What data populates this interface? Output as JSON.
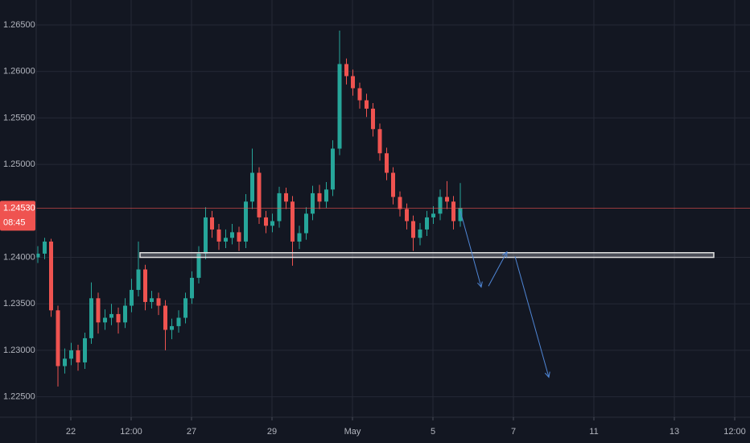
{
  "chart_data": {
    "type": "candlestick",
    "up_color": "#26a69a",
    "down_color": "#ef5350",
    "x": [
      -0.82,
      -0.65,
      -0.49,
      -0.32,
      -0.15,
      0.01,
      0.18,
      0.35,
      0.51,
      0.68,
      0.85,
      1.01,
      1.18,
      1.35,
      1.51,
      1.68,
      1.85,
      2.01,
      2.18,
      2.35,
      2.51,
      2.68,
      2.85,
      3.01,
      3.18,
      3.35,
      3.51,
      3.68,
      3.85,
      4.01,
      4.18,
      4.35,
      4.51,
      4.68,
      4.85,
      5.01,
      5.18,
      5.35,
      5.51,
      5.68,
      5.85,
      6.01,
      6.18,
      6.35,
      6.51,
      6.68,
      6.85,
      7.01,
      7.18,
      7.35,
      7.51,
      7.68,
      7.85,
      8.01,
      8.18,
      8.35,
      8.51,
      8.68,
      8.85,
      9.01,
      9.18,
      9.35,
      9.51,
      9.68
    ],
    "open": [
      1.24,
      1.2404,
      1.2417,
      1.2343,
      1.2283,
      1.2291,
      1.23,
      1.2287,
      1.2313,
      1.2356,
      1.233,
      1.2335,
      1.2339,
      1.233,
      1.2348,
      1.2365,
      1.2387,
      1.2352,
      1.2356,
      1.2348,
      1.2322,
      1.2326,
      1.2335,
      1.2356,
      1.2378,
      1.2404,
      1.2443,
      1.243,
      1.2417,
      1.2421,
      1.2427,
      1.2417,
      1.246,
      1.2491,
      1.2443,
      1.2434,
      1.2439,
      1.2469,
      1.246,
      1.2417,
      1.2426,
      1.2447,
      1.2469,
      1.246,
      1.2473,
      1.2517,
      1.2608,
      1.2595,
      1.2582,
      1.2569,
      1.256,
      1.2538,
      1.2512,
      1.2491,
      1.2465,
      1.2452,
      1.2439,
      1.2421,
      1.243,
      1.2443,
      1.2447,
      1.2465,
      1.246,
      1.2439
    ],
    "high": [
      1.2412,
      1.2421,
      1.242,
      1.2348,
      1.2302,
      1.2308,
      1.2306,
      1.2319,
      1.2373,
      1.2362,
      1.2344,
      1.235,
      1.2346,
      1.2356,
      1.2377,
      1.2417,
      1.2392,
      1.2364,
      1.2362,
      1.2354,
      1.2334,
      1.2343,
      1.2362,
      1.2385,
      1.2412,
      1.2454,
      1.245,
      1.2436,
      1.243,
      1.2436,
      1.2433,
      1.2468,
      1.2517,
      1.2497,
      1.245,
      1.2447,
      1.2476,
      1.2475,
      1.2466,
      1.2434,
      1.2454,
      1.2477,
      1.2478,
      1.2481,
      1.2526,
      1.2644,
      1.2614,
      1.2602,
      1.2588,
      1.2576,
      1.2566,
      1.2544,
      1.2518,
      1.2497,
      1.2471,
      1.2458,
      1.2445,
      1.2437,
      1.245,
      1.2455,
      1.2473,
      1.2482,
      1.2466,
      1.248
    ],
    "low": [
      1.2394,
      1.2398,
      1.2336,
      1.2261,
      1.2275,
      1.2284,
      1.2278,
      1.228,
      1.2307,
      1.2318,
      1.2322,
      1.2327,
      1.2318,
      1.2324,
      1.2341,
      1.2358,
      1.2343,
      1.2345,
      1.2338,
      1.23,
      1.2312,
      1.2319,
      1.2329,
      1.235,
      1.2372,
      1.2398,
      1.2421,
      1.2408,
      1.241,
      1.2414,
      1.2407,
      1.241,
      1.2452,
      1.2436,
      1.2426,
      1.2427,
      1.2432,
      1.2452,
      1.2391,
      1.2409,
      1.2419,
      1.244,
      1.2452,
      1.2453,
      1.2466,
      1.251,
      1.2586,
      1.2574,
      1.256,
      1.2551,
      1.253,
      1.2504,
      1.2483,
      1.2457,
      1.2444,
      1.243,
      1.2407,
      1.2413,
      1.2423,
      1.2436,
      1.244,
      1.2452,
      1.243,
      1.2433
    ],
    "close": [
      1.2404,
      1.2417,
      1.2343,
      1.2283,
      1.2291,
      1.23,
      1.2287,
      1.2313,
      1.2356,
      1.233,
      1.2335,
      1.2339,
      1.233,
      1.2348,
      1.2365,
      1.2387,
      1.2352,
      1.2356,
      1.2348,
      1.2322,
      1.2326,
      1.2335,
      1.2356,
      1.2378,
      1.2404,
      1.2443,
      1.243,
      1.2417,
      1.2421,
      1.2427,
      1.2417,
      1.246,
      1.2491,
      1.2443,
      1.2434,
      1.2439,
      1.2469,
      1.246,
      1.2417,
      1.2426,
      1.2447,
      1.2469,
      1.246,
      1.2473,
      1.2517,
      1.2608,
      1.2595,
      1.2582,
      1.2569,
      1.256,
      1.2538,
      1.2512,
      1.2491,
      1.2465,
      1.2452,
      1.2439,
      1.2421,
      1.243,
      1.2443,
      1.2447,
      1.2465,
      1.246,
      1.2439,
      1.2453
    ],
    "xlim": [
      -0.86,
      16.88
    ],
    "xticks": [
      {
        "value": 0,
        "label": "22"
      },
      {
        "value": 1.5,
        "label": "12:00"
      },
      {
        "value": 3,
        "label": "27"
      },
      {
        "value": 5,
        "label": "29"
      },
      {
        "value": 7,
        "label": "May"
      },
      {
        "value": 9,
        "label": "5"
      },
      {
        "value": 11,
        "label": "7"
      },
      {
        "value": 13,
        "label": "11"
      },
      {
        "value": 15,
        "label": "13"
      },
      {
        "value": 16.5,
        "label": "12:00"
      }
    ],
    "ylim": [
      1.2228,
      1.26769
    ],
    "yticks": [
      {
        "value": 1.265,
        "label": "1.26500"
      },
      {
        "value": 1.26,
        "label": "1.26000"
      },
      {
        "value": 1.255,
        "label": "1.25500"
      },
      {
        "value": 1.25,
        "label": "1.25000"
      },
      {
        "value": 1.24,
        "label": "1.24000"
      },
      {
        "value": 1.235,
        "label": "1.23500"
      },
      {
        "value": 1.23,
        "label": "1.23000"
      },
      {
        "value": 1.225,
        "label": "1.22500"
      }
    ],
    "grid": true,
    "last_price": {
      "value": 1.2453,
      "label": "1.24530",
      "color": "#ef5350"
    },
    "countdown": "08:45",
    "drawings": {
      "zone": {
        "x": [
          1.72,
          15.98
        ],
        "y": [
          1.24,
          1.2405
        ]
      },
      "arrows": [
        {
          "x": [
            9.68,
            10.2
          ],
          "y": [
            1.245,
            1.2368
          ]
        },
        {
          "x": [
            10.38,
            10.84
          ],
          "y": [
            1.2369,
            1.2406
          ]
        },
        {
          "x": [
            11.04,
            11.88
          ],
          "y": [
            1.2401,
            1.2271
          ]
        }
      ],
      "arrow_color": "#4f86d6"
    }
  }
}
